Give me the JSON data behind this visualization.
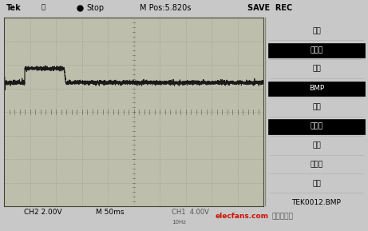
{
  "bg_color": "#c8c8c8",
  "screen_bg": "#bebead",
  "grid_dot_color": "#888878",
  "waveform_color": "#111111",
  "header_bg": "#c8c8c8",
  "right_panel_bg": "#c8c8c8",
  "right_menu": [
    "动作",
    "存图像",
    "格式",
    "BMP",
    "关于",
    "存图像",
    "选择",
    "文件夹",
    "储存",
    "TEK0012.BMP"
  ],
  "highlight_items": [
    "存图像",
    "BMP"
  ],
  "grid_cols": 10,
  "grid_rows": 8,
  "figsize": [
    4.61,
    2.89
  ],
  "dpi": 100,
  "watermark_red": "elecfans.com",
  "watermark_black": "电子发烧友"
}
